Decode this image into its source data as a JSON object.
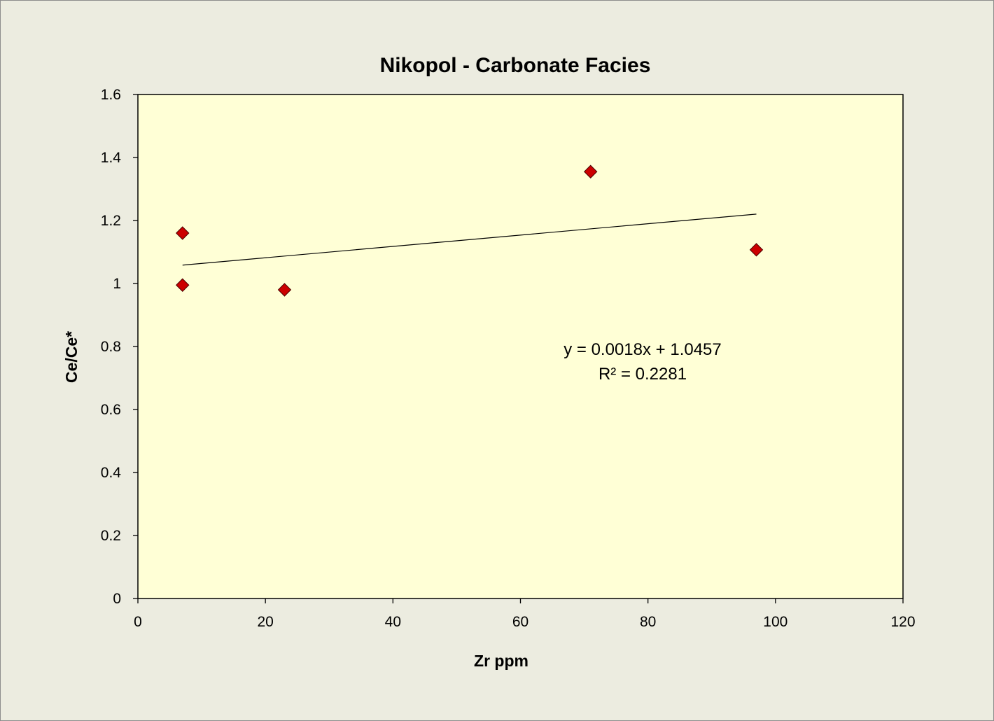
{
  "colors": {
    "background": "#ECECE0",
    "plot_background": "#FFFFD6",
    "marker_fill": "#CC0000",
    "marker_stroke": "#4A0000",
    "axis": "#000000"
  },
  "chart_data": {
    "type": "scatter",
    "title": "Nikopol - Carbonate Facies",
    "xlabel": "Zr ppm",
    "ylabel": "Ce/Ce*",
    "xlim": [
      0,
      120
    ],
    "ylim": [
      0,
      1.6
    ],
    "xticks": [
      0,
      20,
      40,
      60,
      80,
      100,
      120
    ],
    "yticks": [
      0,
      0.2,
      0.4,
      0.6,
      0.8,
      1,
      1.2,
      1.4,
      1.6
    ],
    "xtick_labels": [
      "0",
      "20",
      "40",
      "60",
      "80",
      "100",
      "120"
    ],
    "ytick_labels": [
      "0",
      "0.2",
      "0.4",
      "0.6",
      "0.8",
      "1",
      "1.2",
      "1.4",
      "1.6"
    ],
    "grid": false,
    "legend": "none",
    "marker": "diamond",
    "series": [
      {
        "x": [
          7,
          7,
          23,
          71,
          97
        ],
        "y": [
          1.16,
          0.995,
          0.98,
          1.355,
          1.107
        ]
      }
    ],
    "trendline": {
      "type": "linear",
      "slope": 0.0018,
      "intercept": 1.0457,
      "x_range": [
        7,
        97
      ],
      "equation_label": "y = 0.0018x + 1.0457",
      "r2_label": "R² = 0.2281"
    }
  }
}
